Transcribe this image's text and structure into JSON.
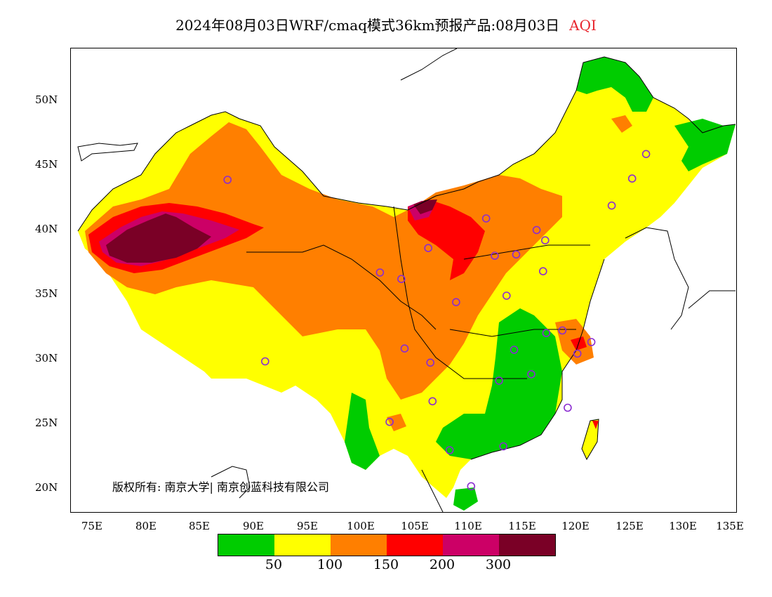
{
  "title": {
    "main": "2024年08月03日WRF/cmaq模式36km预报产品:08月03日",
    "metric": "AQI",
    "metric_color": "#e8262e"
  },
  "axes": {
    "y_labels": [
      "50N",
      "45N",
      "40N",
      "35N",
      "30N",
      "25N",
      "20N"
    ],
    "x_labels": [
      "75E",
      "80E",
      "85E",
      "90E",
      "95E",
      "100E",
      "105E",
      "110E",
      "115E",
      "120E",
      "125E",
      "130E",
      "135E"
    ]
  },
  "map": {
    "region": "China",
    "variable": "AQI",
    "lon_range": [
      73,
      135
    ],
    "lat_range": [
      18,
      54
    ],
    "station_marker_color": "#8b2cd1",
    "stations": [
      {
        "lon": 87.6,
        "lat": 43.8
      },
      {
        "lon": 101.8,
        "lat": 36.6
      },
      {
        "lon": 103.8,
        "lat": 36.1
      },
      {
        "lon": 106.3,
        "lat": 38.5
      },
      {
        "lon": 111.7,
        "lat": 40.8
      },
      {
        "lon": 112.5,
        "lat": 37.9
      },
      {
        "lon": 114.5,
        "lat": 38.0
      },
      {
        "lon": 116.4,
        "lat": 39.9
      },
      {
        "lon": 117.2,
        "lat": 39.1
      },
      {
        "lon": 117.0,
        "lat": 36.7
      },
      {
        "lon": 113.6,
        "lat": 34.8
      },
      {
        "lon": 108.9,
        "lat": 34.3
      },
      {
        "lon": 123.4,
        "lat": 41.8
      },
      {
        "lon": 125.3,
        "lat": 43.9
      },
      {
        "lon": 126.6,
        "lat": 45.8
      },
      {
        "lon": 117.3,
        "lat": 31.9
      },
      {
        "lon": 118.8,
        "lat": 32.1
      },
      {
        "lon": 121.5,
        "lat": 31.2
      },
      {
        "lon": 120.2,
        "lat": 30.3
      },
      {
        "lon": 114.3,
        "lat": 30.6
      },
      {
        "lon": 115.9,
        "lat": 28.7
      },
      {
        "lon": 112.9,
        "lat": 28.2
      },
      {
        "lon": 119.3,
        "lat": 26.1
      },
      {
        "lon": 113.3,
        "lat": 23.1
      },
      {
        "lon": 108.3,
        "lat": 22.8
      },
      {
        "lon": 110.3,
        "lat": 20.0
      },
      {
        "lon": 106.7,
        "lat": 26.6
      },
      {
        "lon": 102.7,
        "lat": 25.0
      },
      {
        "lon": 104.1,
        "lat": 30.7
      },
      {
        "lon": 106.5,
        "lat": 29.6
      },
      {
        "lon": 91.1,
        "lat": 29.7
      }
    ]
  },
  "copyright": "版权所有: 南京大学| 南京创蓝科技有限公司",
  "legend": {
    "colors": [
      "#00cc00",
      "#ffff00",
      "#ff7f00",
      "#ff0000",
      "#cc0066",
      "#7a0026"
    ],
    "labels": [
      "50",
      "100",
      "150",
      "200",
      "300"
    ]
  }
}
